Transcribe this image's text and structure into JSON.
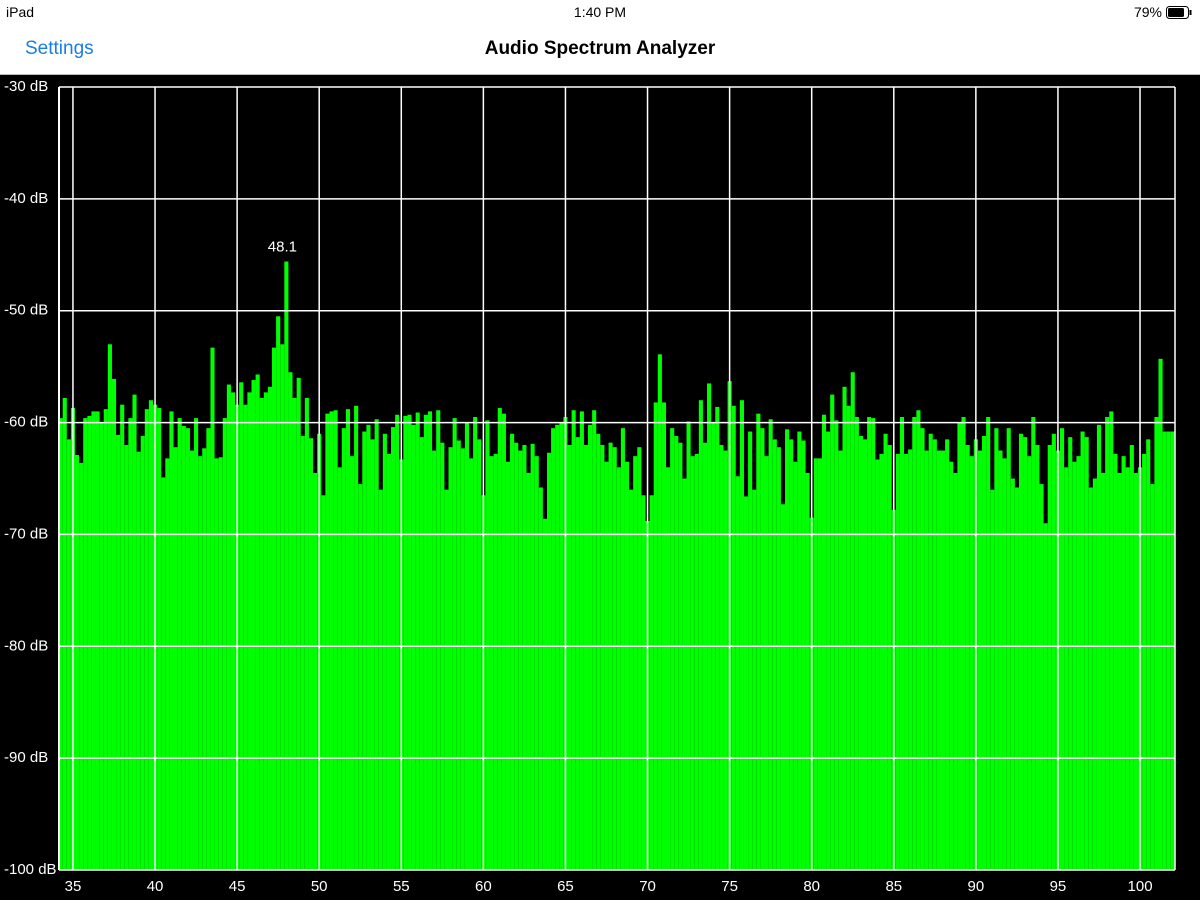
{
  "status_bar": {
    "device": "iPad",
    "time": "1:40 PM",
    "battery": "79%"
  },
  "nav_bar": {
    "back": "Settings",
    "title": "Audio Spectrum Analyzer"
  },
  "chart_data": {
    "type": "bar",
    "color": "#00ff00",
    "grid": true,
    "peak_label": "48.1",
    "xlim": [
      34.15,
      102.13
    ],
    "ylim": [
      -100,
      -30
    ],
    "xticks": [
      35,
      40,
      45,
      50,
      55,
      60,
      65,
      70,
      75,
      80,
      85,
      90,
      95,
      100
    ],
    "yticks": [
      {
        "value": -30,
        "label": "-30 dB"
      },
      {
        "value": -40,
        "label": "-40 dB"
      },
      {
        "value": -50,
        "label": "-50 dB"
      },
      {
        "value": -60,
        "label": "-60 dB"
      },
      {
        "value": -70,
        "label": "-70 dB"
      },
      {
        "value": -80,
        "label": "-80 dB"
      },
      {
        "value": -90,
        "label": "-90 dB"
      },
      {
        "value": -100,
        "label": "-100 dB"
      }
    ],
    "x": [
      34.25,
      34.5,
      34.75,
      35,
      35.25,
      35.5,
      35.75,
      36,
      36.25,
      36.5,
      36.75,
      37,
      37.25,
      37.5,
      37.75,
      38,
      38.25,
      38.5,
      38.75,
      39,
      39.25,
      39.5,
      39.75,
      40,
      40.25,
      40.5,
      40.75,
      41,
      41.25,
      41.5,
      41.75,
      42,
      42.25,
      42.5,
      42.75,
      43,
      43.25,
      43.5,
      43.75,
      44,
      44.25,
      44.5,
      44.75,
      45,
      45.25,
      45.5,
      45.75,
      46,
      46.25,
      46.5,
      46.75,
      47,
      47.25,
      47.5,
      47.75,
      48,
      48.25,
      48.5,
      48.75,
      49,
      49.25,
      49.5,
      49.75,
      50,
      50.25,
      50.5,
      50.75,
      51,
      51.25,
      51.5,
      51.75,
      52,
      52.25,
      52.5,
      52.75,
      53,
      53.25,
      53.5,
      53.75,
      54,
      54.25,
      54.5,
      54.75,
      55,
      55.25,
      55.5,
      55.75,
      56,
      56.25,
      56.5,
      56.75,
      57,
      57.25,
      57.5,
      57.75,
      58,
      58.25,
      58.5,
      58.75,
      59,
      59.25,
      59.5,
      59.75,
      60,
      60.25,
      60.5,
      60.75,
      61,
      61.25,
      61.5,
      61.75,
      62,
      62.25,
      62.5,
      62.75,
      63,
      63.25,
      63.5,
      63.75,
      64,
      64.25,
      64.5,
      64.75,
      65,
      65.25,
      65.5,
      65.75,
      66,
      66.25,
      66.5,
      66.75,
      67,
      67.25,
      67.5,
      67.75,
      68,
      68.25,
      68.5,
      68.75,
      69,
      69.25,
      69.5,
      69.75,
      70,
      70.25,
      70.5,
      70.75,
      71,
      71.25,
      71.5,
      71.75,
      72,
      72.25,
      72.5,
      72.75,
      73,
      73.25,
      73.5,
      73.75,
      74,
      74.25,
      74.5,
      74.75,
      75,
      75.25,
      75.5,
      75.75,
      76,
      76.25,
      76.5,
      76.75,
      77,
      77.25,
      77.5,
      77.75,
      78,
      78.25,
      78.5,
      78.75,
      79,
      79.25,
      79.5,
      79.75,
      80,
      80.25,
      80.5,
      80.75,
      81,
      81.25,
      81.5,
      81.75,
      82,
      82.25,
      82.5,
      82.75,
      83,
      83.25,
      83.5,
      83.75,
      84,
      84.25,
      84.5,
      84.75,
      85,
      85.25,
      85.5,
      85.75,
      86,
      86.25,
      86.5,
      86.75,
      87,
      87.25,
      87.5,
      87.75,
      88,
      88.25,
      88.5,
      88.75,
      89,
      89.25,
      89.5,
      89.75,
      90,
      90.25,
      90.5,
      90.75,
      91,
      91.25,
      91.5,
      91.75,
      92,
      92.25,
      92.5,
      92.75,
      93,
      93.25,
      93.5,
      93.75,
      94,
      94.25,
      94.5,
      94.75,
      95,
      95.25,
      95.5,
      95.75,
      96,
      96.25,
      96.5,
      96.75,
      97,
      97.25,
      97.5,
      97.75,
      98,
      98.25,
      98.5,
      98.75,
      99,
      99.25,
      99.5,
      99.75,
      100,
      100.25,
      100.5,
      100.75,
      101,
      101.25,
      101.5,
      101.75,
      102
    ],
    "values": [
      -59.6,
      -57.8,
      -61.5,
      -58.7,
      -62.9,
      -63.6,
      -59.6,
      -59.4,
      -59.0,
      -59.0,
      -60.0,
      -58.8,
      -53.0,
      -56.1,
      -61.1,
      -58.4,
      -62.0,
      -59.6,
      -57.5,
      -62.6,
      -61.2,
      -58.8,
      -58.0,
      -58.4,
      -58.7,
      -64.9,
      -63.2,
      -59.0,
      -62.2,
      -59.6,
      -60.3,
      -60.5,
      -62.5,
      -59.6,
      -63.0,
      -62.3,
      -60.5,
      -53.3,
      -63.2,
      -63.1,
      -59.6,
      -56.6,
      -57.3,
      -58.4,
      -56.4,
      -58.4,
      -57.3,
      -56.2,
      -55.7,
      -57.8,
      -57.3,
      -56.8,
      -53.3,
      -50.5,
      -53.0,
      -45.6,
      -55.5,
      -57.8,
      -56.0,
      -61.2,
      -57.8,
      -61.4,
      -64.5,
      -61.0,
      -66.5,
      -59.2,
      -59.0,
      -58.9,
      -64.0,
      -60.5,
      -58.8,
      -63.0,
      -58.5,
      -65.5,
      -60.8,
      -60.2,
      -61.5,
      -59.7,
      -66.0,
      -61.0,
      -62.8,
      -60.4,
      -59.3,
      -63.3,
      -59.4,
      -59.3,
      -60.2,
      -59.1,
      -61.3,
      -59.3,
      -59.0,
      -62.5,
      -58.9,
      -61.8,
      -66.0,
      -62.2,
      -59.6,
      -61.6,
      -62.3,
      -60.0,
      -63.2,
      -59.5,
      -61.5,
      -66.5,
      -59.8,
      -63.0,
      -62.8,
      -58.7,
      -59.2,
      -63.5,
      -61.0,
      -61.8,
      -62.5,
      -62.0,
      -64.5,
      -61.9,
      -63.0,
      -65.8,
      -68.6,
      -62.7,
      -60.5,
      -60.2,
      -60.0,
      -59.5,
      -62.0,
      -58.9,
      -61.3,
      -59.0,
      -62.0,
      -60.2,
      -58.9,
      -61.0,
      -62.0,
      -63.5,
      -61.8,
      -62.2,
      -64.0,
      -60.5,
      -63.5,
      -66.0,
      -63.0,
      -62.2,
      -66.5,
      -68.8,
      -66.5,
      -58.2,
      -53.9,
      -58.2,
      -64.0,
      -60.5,
      -61.2,
      -61.8,
      -65.0,
      -59.9,
      -63.0,
      -62.8,
      -58.0,
      -61.8,
      -56.5,
      -60.0,
      -58.6,
      -62.0,
      -62.5,
      -56.3,
      -58.5,
      -64.8,
      -58.0,
      -66.6,
      -60.8,
      -66.0,
      -59.2,
      -60.5,
      -63.0,
      -59.7,
      -61.5,
      -62.2,
      -67.3,
      -60.6,
      -61.5,
      -63.5,
      -60.8,
      -61.6,
      -64.5,
      -68.5,
      -63.2,
      -63.2,
      -59.3,
      -60.8,
      -57.5,
      -59.8,
      -62.5,
      -56.8,
      -58.5,
      -55.5,
      -59.5,
      -61.2,
      -61.5,
      -59.5,
      -59.6,
      -63.3,
      -62.8,
      -61.0,
      -62.0,
      -67.8,
      -62.8,
      -59.5,
      -62.8,
      -62.4,
      -59.5,
      -58.9,
      -60.5,
      -62.5,
      -61.0,
      -61.5,
      -62.5,
      -62.5,
      -61.5,
      -63.5,
      -64.5,
      -60.0,
      -59.5,
      -62.0,
      -63.0,
      -61.5,
      -62.5,
      -61.2,
      -59.5,
      -66.0,
      -60.5,
      -62.5,
      -63.2,
      -60.5,
      -65.0,
      -65.8,
      -61.0,
      -61.3,
      -63.0,
      -59.5,
      -62.0,
      -65.5,
      -69.0,
      -62.0,
      -61.0,
      -62.5,
      -60.5,
      -64.0,
      -61.3,
      -63.5,
      -63.0,
      -60.8,
      -61.3,
      -65.8,
      -65.0,
      -60.2,
      -64.5,
      -59.5,
      -59.0,
      -62.8,
      -64.5,
      -63.0,
      -64.0,
      -62.0,
      -64.5,
      -64.0,
      -62.8,
      -61.5,
      -65.5,
      -59.5,
      -54.3,
      -60.8,
      -60.8,
      -60.8
    ]
  }
}
